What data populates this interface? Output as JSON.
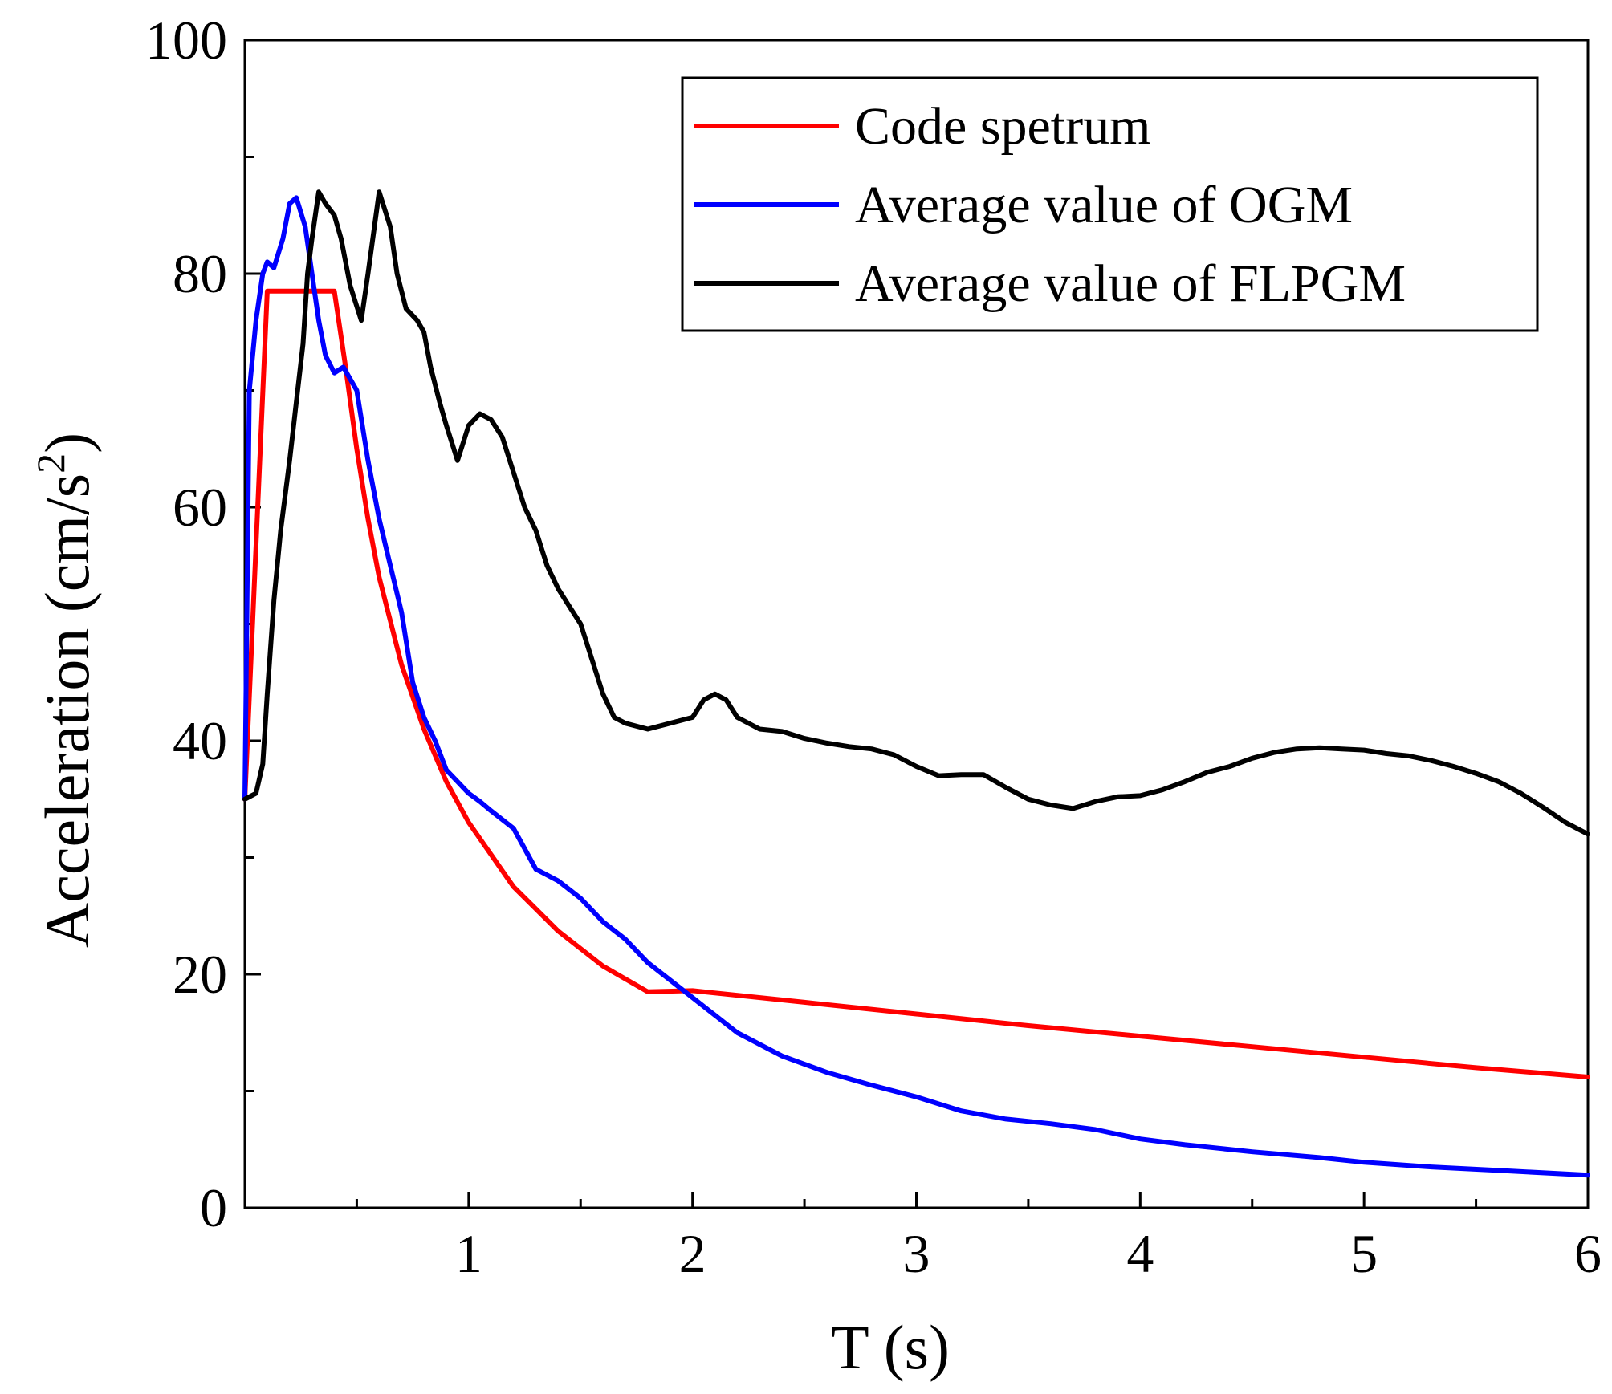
{
  "chart_data": {
    "type": "line",
    "xlabel": "T (s)",
    "ylabel_main": "Acceleration (cm/s",
    "ylabel_sup": "2",
    "ylabel_close": ")",
    "xlim": [
      0,
      6
    ],
    "ylim": [
      0,
      100
    ],
    "xticks": [
      1,
      2,
      3,
      4,
      5,
      6
    ],
    "yticks": [
      0,
      20,
      40,
      60,
      80,
      100
    ],
    "xminor": [
      0.5,
      1.5,
      2.5,
      3.5,
      4.5,
      5.5
    ],
    "yminor": [
      10,
      30,
      50,
      70,
      90
    ],
    "grid": false,
    "legend_position": "top-right",
    "series": [
      {
        "name": "Code spetrum",
        "color": "#ff0000",
        "points": [
          [
            0,
            35
          ],
          [
            0.1,
            78.5
          ],
          [
            0.4,
            78.5
          ],
          [
            0.45,
            72
          ],
          [
            0.5,
            65
          ],
          [
            0.55,
            59
          ],
          [
            0.6,
            54
          ],
          [
            0.7,
            46.5
          ],
          [
            0.8,
            41
          ],
          [
            0.9,
            36.5
          ],
          [
            1.0,
            33
          ],
          [
            1.2,
            27.5
          ],
          [
            1.4,
            23.7
          ],
          [
            1.6,
            20.7
          ],
          [
            1.8,
            18.5
          ],
          [
            2.0,
            18.6
          ],
          [
            2.5,
            17.6
          ],
          [
            3.0,
            16.6
          ],
          [
            3.5,
            15.6
          ],
          [
            4.0,
            14.7
          ],
          [
            4.5,
            13.8
          ],
          [
            5.0,
            12.9
          ],
          [
            5.5,
            12
          ],
          [
            6.0,
            11.2
          ]
        ]
      },
      {
        "name": "Average value of OGM",
        "color": "#0000ff",
        "points": [
          [
            0,
            35
          ],
          [
            0.02,
            70
          ],
          [
            0.05,
            76
          ],
          [
            0.08,
            80
          ],
          [
            0.1,
            81
          ],
          [
            0.13,
            80.5
          ],
          [
            0.17,
            83
          ],
          [
            0.2,
            86
          ],
          [
            0.23,
            86.5
          ],
          [
            0.27,
            84
          ],
          [
            0.3,
            80
          ],
          [
            0.33,
            76
          ],
          [
            0.36,
            73
          ],
          [
            0.4,
            71.5
          ],
          [
            0.44,
            72
          ],
          [
            0.5,
            70
          ],
          [
            0.55,
            64
          ],
          [
            0.6,
            59
          ],
          [
            0.65,
            55
          ],
          [
            0.7,
            51
          ],
          [
            0.75,
            45
          ],
          [
            0.8,
            42
          ],
          [
            0.85,
            40
          ],
          [
            0.9,
            37.5
          ],
          [
            0.95,
            36.5
          ],
          [
            1.0,
            35.5
          ],
          [
            1.05,
            34.8
          ],
          [
            1.1,
            34
          ],
          [
            1.2,
            32.5
          ],
          [
            1.3,
            29
          ],
          [
            1.4,
            28
          ],
          [
            1.5,
            26.5
          ],
          [
            1.6,
            24.5
          ],
          [
            1.7,
            23
          ],
          [
            1.8,
            21
          ],
          [
            1.9,
            19.5
          ],
          [
            2.0,
            18
          ],
          [
            2.2,
            15
          ],
          [
            2.4,
            13
          ],
          [
            2.6,
            11.6
          ],
          [
            2.8,
            10.5
          ],
          [
            3.0,
            9.5
          ],
          [
            3.2,
            8.3
          ],
          [
            3.4,
            7.6
          ],
          [
            3.6,
            7.2
          ],
          [
            3.8,
            6.7
          ],
          [
            4.0,
            5.9
          ],
          [
            4.2,
            5.4
          ],
          [
            4.5,
            4.8
          ],
          [
            4.8,
            4.3
          ],
          [
            5.0,
            3.9
          ],
          [
            5.3,
            3.5
          ],
          [
            5.6,
            3.2
          ],
          [
            6.0,
            2.8
          ]
        ]
      },
      {
        "name": "Average value of FLPGM",
        "color": "#000000",
        "points": [
          [
            0,
            35
          ],
          [
            0.05,
            35.5
          ],
          [
            0.08,
            38
          ],
          [
            0.1,
            44
          ],
          [
            0.13,
            52
          ],
          [
            0.16,
            58
          ],
          [
            0.2,
            64
          ],
          [
            0.23,
            69
          ],
          [
            0.26,
            74
          ],
          [
            0.28,
            80
          ],
          [
            0.3,
            83
          ],
          [
            0.33,
            87
          ],
          [
            0.36,
            86
          ],
          [
            0.4,
            85
          ],
          [
            0.43,
            83
          ],
          [
            0.47,
            79
          ],
          [
            0.52,
            76
          ],
          [
            0.55,
            80
          ],
          [
            0.6,
            87
          ],
          [
            0.65,
            84
          ],
          [
            0.68,
            80
          ],
          [
            0.72,
            77
          ],
          [
            0.77,
            76
          ],
          [
            0.8,
            75
          ],
          [
            0.83,
            72
          ],
          [
            0.87,
            69
          ],
          [
            0.9,
            67
          ],
          [
            0.95,
            64
          ],
          [
            1.0,
            67
          ],
          [
            1.05,
            68
          ],
          [
            1.1,
            67.5
          ],
          [
            1.15,
            66
          ],
          [
            1.2,
            63
          ],
          [
            1.25,
            60
          ],
          [
            1.3,
            58
          ],
          [
            1.35,
            55
          ],
          [
            1.4,
            53
          ],
          [
            1.45,
            51.5
          ],
          [
            1.5,
            50
          ],
          [
            1.55,
            47
          ],
          [
            1.6,
            44
          ],
          [
            1.65,
            42
          ],
          [
            1.7,
            41.5
          ],
          [
            1.8,
            41
          ],
          [
            1.9,
            41.5
          ],
          [
            2.0,
            42
          ],
          [
            2.05,
            43.5
          ],
          [
            2.1,
            44
          ],
          [
            2.15,
            43.5
          ],
          [
            2.2,
            42
          ],
          [
            2.3,
            41
          ],
          [
            2.4,
            40.8
          ],
          [
            2.5,
            40.2
          ],
          [
            2.6,
            39.8
          ],
          [
            2.7,
            39.5
          ],
          [
            2.8,
            39.3
          ],
          [
            2.9,
            38.8
          ],
          [
            3.0,
            37.8
          ],
          [
            3.1,
            37
          ],
          [
            3.2,
            37.1
          ],
          [
            3.3,
            37.1
          ],
          [
            3.4,
            36
          ],
          [
            3.5,
            35
          ],
          [
            3.6,
            34.5
          ],
          [
            3.7,
            34.2
          ],
          [
            3.8,
            34.8
          ],
          [
            3.9,
            35.2
          ],
          [
            4.0,
            35.3
          ],
          [
            4.1,
            35.8
          ],
          [
            4.2,
            36.5
          ],
          [
            4.3,
            37.3
          ],
          [
            4.4,
            37.8
          ],
          [
            4.5,
            38.5
          ],
          [
            4.6,
            39
          ],
          [
            4.7,
            39.3
          ],
          [
            4.8,
            39.4
          ],
          [
            4.9,
            39.3
          ],
          [
            5.0,
            39.2
          ],
          [
            5.1,
            38.9
          ],
          [
            5.2,
            38.7
          ],
          [
            5.3,
            38.3
          ],
          [
            5.4,
            37.8
          ],
          [
            5.5,
            37.2
          ],
          [
            5.6,
            36.5
          ],
          [
            5.7,
            35.5
          ],
          [
            5.8,
            34.3
          ],
          [
            5.9,
            33
          ],
          [
            6.0,
            32
          ]
        ]
      }
    ]
  }
}
